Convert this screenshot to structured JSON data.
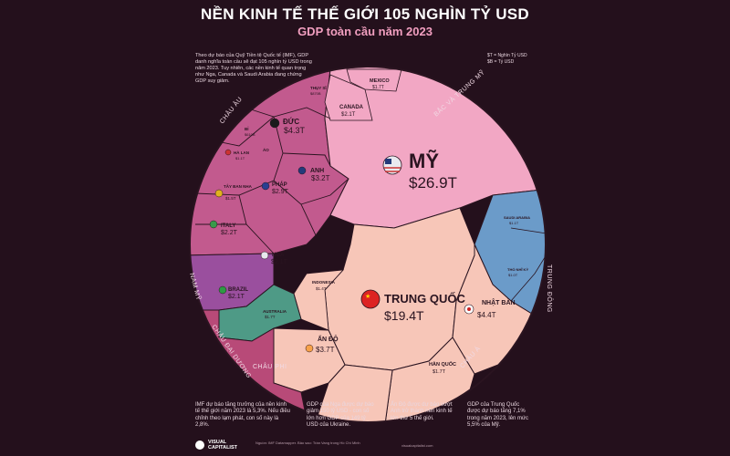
{
  "header": {
    "title": "NỀN KINH TẾ THẾ GIỚI 105 NGHÌN TỶ USD",
    "subtitle": "GDP toàn cầu năm 2023"
  },
  "intro_text": "Theo dự báo của Quỹ Tiền tệ Quốc tế (IMF), GDP danh nghĩa toàn cầu sẽ đạt 105 nghìn tỷ USD trong năm 2023. Tuy nhiên, các nền kinh tế quan trọng như Nga, Canada và Saudi Arabia đang chứng GDP suy giảm.",
  "legend_text": [
    "$T = Nghìn Tỷ USD",
    "$B = Tỷ USD"
  ],
  "colors": {
    "background": "#24101c",
    "north_america": "#f2a7c4",
    "europe": "#c25a8e",
    "asia": "#f7c6b8",
    "middle_east": "#6b9bc9",
    "latin_america": "#9a4f9e",
    "oceania": "#4e9a86",
    "africa": "#b84a78"
  },
  "chart_data": {
    "type": "voronoi-treemap",
    "title": "NỀN KINH TẾ THẾ GIỚI 105 NGHÌN TỶ USD",
    "subtitle": "GDP toàn cầu năm 2023",
    "unit": "$T = Nghìn Tỷ USD",
    "regions": [
      {
        "name": "BẮC VÀ TRUNG MỸ",
        "countries": [
          {
            "name": "MỸ",
            "value": "$26.9T",
            "flag": "us"
          },
          {
            "name": "CANADA",
            "value": "$2.1T",
            "flag": "ca"
          },
          {
            "name": "MEXICO",
            "value": "$1.7T",
            "flag": "mx"
          }
        ]
      },
      {
        "name": "CHÂU ÂU",
        "countries": [
          {
            "name": "ĐỨC",
            "value": "$4.3T",
            "flag": "de"
          },
          {
            "name": "ANH",
            "value": "$3.2T",
            "flag": "gb"
          },
          {
            "name": "PHÁP",
            "value": "$2.9T",
            "flag": "fr"
          },
          {
            "name": "ITALY",
            "value": "$2.2T",
            "flag": "it"
          },
          {
            "name": "NGA",
            "value": "$2.1T",
            "flag": "ru"
          },
          {
            "name": "TÂY BAN NHA",
            "value": "$1.5T",
            "flag": "es"
          },
          {
            "name": "HÀ LAN",
            "value": "$1.1T",
            "flag": "nl"
          },
          {
            "name": "THỤY SĨ",
            "value": "$870B",
            "flag": "ch"
          },
          {
            "name": "BỈ",
            "value": "$610B",
            "flag": "be"
          },
          {
            "name": "ÁO",
            "value": "",
            "flag": "at"
          }
        ]
      },
      {
        "name": "CHÂU Á",
        "countries": [
          {
            "name": "TRUNG QUỐC",
            "value": "$19.4T",
            "flag": "cn"
          },
          {
            "name": "NHẬT BẢN",
            "value": "$4.4T",
            "flag": "jp"
          },
          {
            "name": "ẤN ĐỘ",
            "value": "$3.7T",
            "flag": "in"
          },
          {
            "name": "HÀN QUỐC",
            "value": "$1.7T",
            "flag": "kr"
          },
          {
            "name": "INDONESIA",
            "value": "$1.4T",
            "flag": "id"
          }
        ]
      },
      {
        "name": "TRUNG ĐÔNG",
        "countries": [
          {
            "name": "SAUDI ARABIA",
            "value": "$1.1T",
            "flag": "sa"
          },
          {
            "name": "THỔ NHĨ KỲ",
            "value": "$1.0T",
            "flag": "tr"
          }
        ]
      },
      {
        "name": "NAM MỸ",
        "countries": [
          {
            "name": "BRAZIL",
            "value": "$2.1T",
            "flag": "br"
          }
        ]
      },
      {
        "name": "CHÂU ĐẠI DƯƠNG",
        "countries": [
          {
            "name": "AUSTRALIA",
            "value": "$1.7T",
            "flag": "au"
          }
        ]
      },
      {
        "name": "CHÂU PHI",
        "countries": []
      }
    ]
  },
  "facts": [
    {
      "flag": "imf",
      "text": "IMF dự báo tăng trưởng của nền kinh tế thế giới năm 2023 là 5,3%. Nếu điều chỉnh theo lạm phát, con số này là 2,8%."
    },
    {
      "flag": "ru",
      "text": "GDP của Nga được dự báo giảm 150 tỷ USD - con số lớn hơn GDP của 149 tỷ USD của Ukraine."
    },
    {
      "flag": "in",
      "text": "Ấn Độ được dự báo vượt Anh trở thành nền kinh tế lớn thứ 5 thế giới."
    },
    {
      "flag": "cn",
      "text": "GDP của Trung Quốc được dự báo tăng 7,1% trong năm 2023, lên mức 5,5% của Mỹ."
    }
  ],
  "footer": {
    "brand_line1": "VISUAL",
    "brand_line2": "CAPITALIST",
    "note": "Nguồn: IMF Datamapper. Bảo sao: Trần Vang trong Hồ Chí Minh",
    "links": "visualcapitalist.com"
  }
}
